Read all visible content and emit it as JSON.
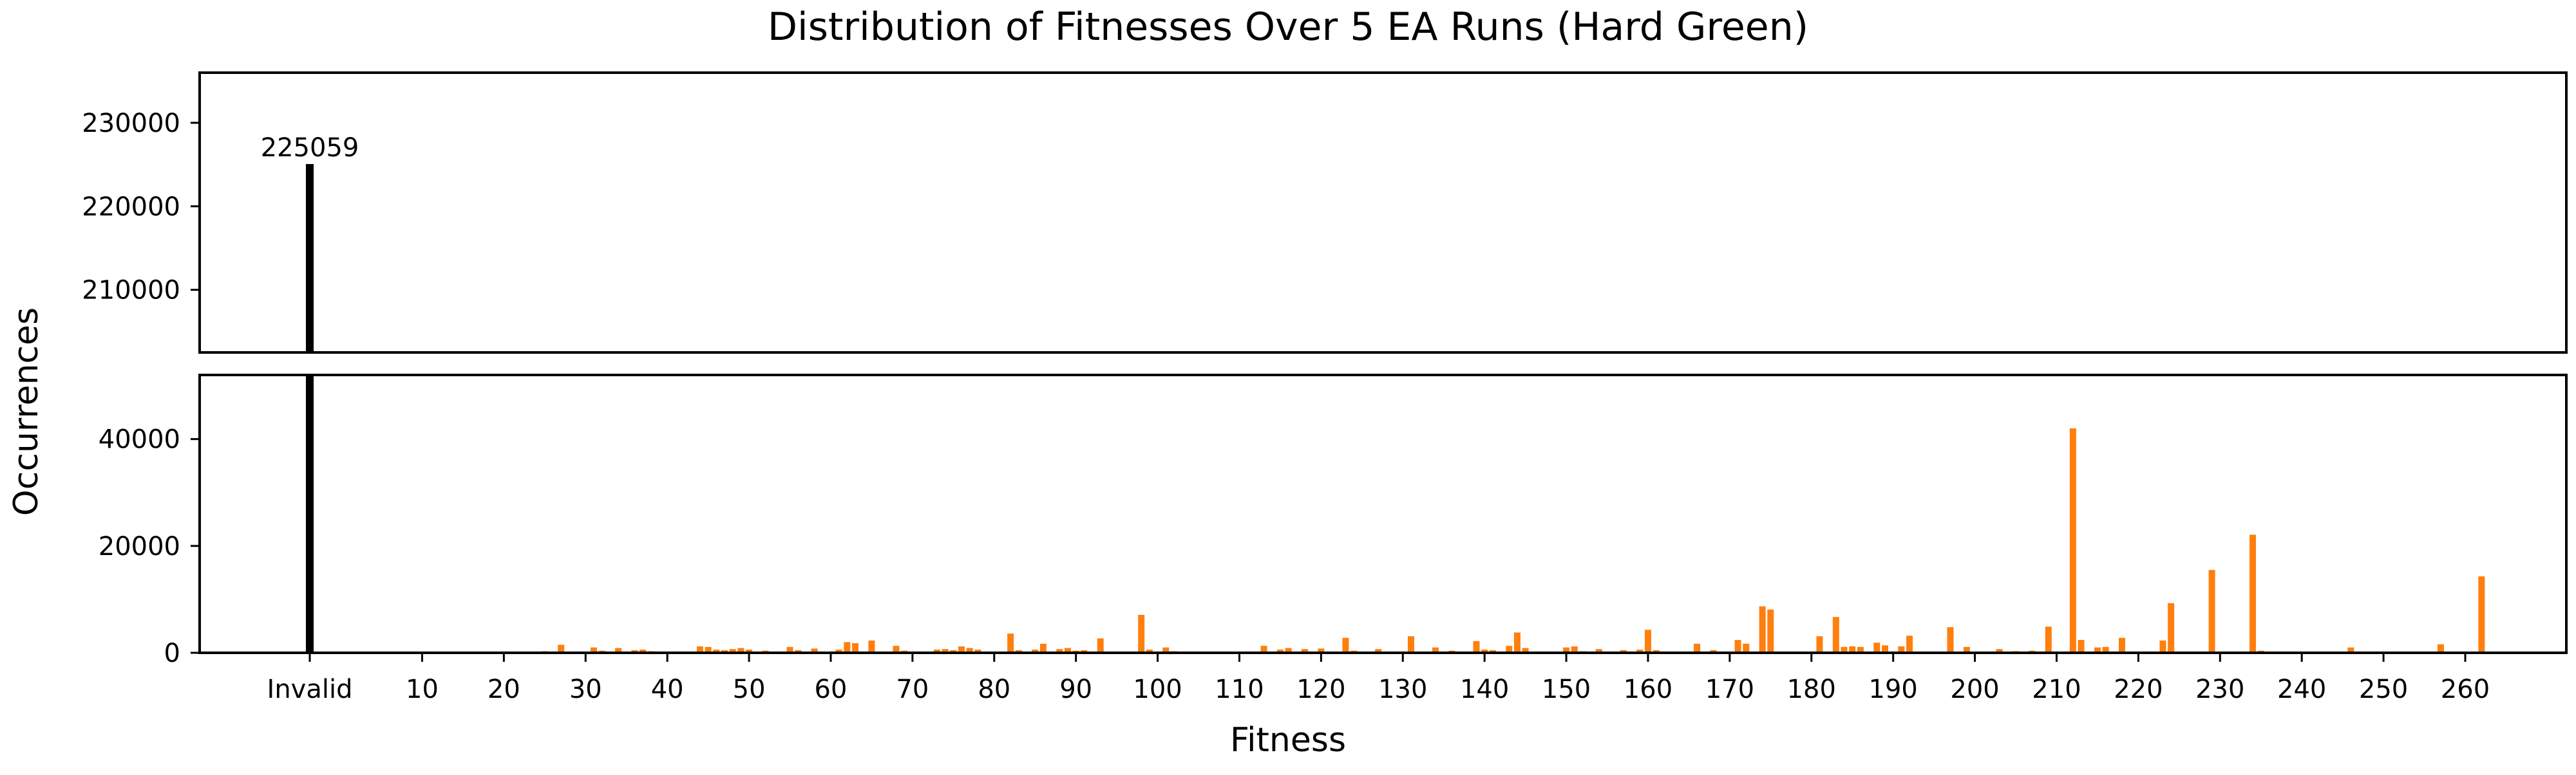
{
  "chart_data": {
    "type": "bar",
    "title": "Distribution of Fitnesses Over 5 EA Runs (Hard Green)",
    "xlabel": "Fitness",
    "ylabel": "Occurrences",
    "x_ticks": [
      "Invalid",
      "10",
      "20",
      "30",
      "40",
      "50",
      "60",
      "70",
      "80",
      "90",
      "100",
      "110",
      "120",
      "130",
      "140",
      "150",
      "160",
      "170",
      "180",
      "190",
      "200",
      "210",
      "220",
      "230",
      "240",
      "250",
      "260"
    ],
    "broken_axis": {
      "top": {
        "ylim": [
          202500,
          236000
        ],
        "yticks": [
          210000,
          220000,
          230000
        ]
      },
      "bottom": {
        "ylim": [
          0,
          52000
        ],
        "yticks": [
          0,
          20000,
          40000
        ]
      }
    },
    "invalid_bar": {
      "label": "Invalid",
      "value": 225059,
      "color": "#000000",
      "data_label": "225059"
    },
    "series": [
      {
        "color": "#ff7f0e",
        "points": [
          [
            25,
            300
          ],
          [
            27,
            1500
          ],
          [
            29,
            200
          ],
          [
            31,
            1000
          ],
          [
            32,
            400
          ],
          [
            34,
            900
          ],
          [
            36,
            500
          ],
          [
            37,
            600
          ],
          [
            38,
            300
          ],
          [
            44,
            1200
          ],
          [
            45,
            1100
          ],
          [
            46,
            600
          ],
          [
            47,
            500
          ],
          [
            48,
            700
          ],
          [
            49,
            900
          ],
          [
            50,
            600
          ],
          [
            52,
            400
          ],
          [
            55,
            1100
          ],
          [
            56,
            500
          ],
          [
            58,
            800
          ],
          [
            61,
            600
          ],
          [
            62,
            2000
          ],
          [
            63,
            1800
          ],
          [
            65,
            2300
          ],
          [
            68,
            1300
          ],
          [
            69,
            400
          ],
          [
            71,
            200
          ],
          [
            73,
            600
          ],
          [
            74,
            700
          ],
          [
            75,
            500
          ],
          [
            76,
            1200
          ],
          [
            77,
            900
          ],
          [
            78,
            600
          ],
          [
            82,
            3600
          ],
          [
            83,
            500
          ],
          [
            85,
            600
          ],
          [
            86,
            1700
          ],
          [
            88,
            700
          ],
          [
            89,
            900
          ],
          [
            90,
            400
          ],
          [
            91,
            500
          ],
          [
            93,
            2700
          ],
          [
            98,
            7100
          ],
          [
            99,
            600
          ],
          [
            101,
            1000
          ],
          [
            102,
            300
          ],
          [
            113,
            1300
          ],
          [
            115,
            600
          ],
          [
            116,
            900
          ],
          [
            118,
            700
          ],
          [
            120,
            800
          ],
          [
            123,
            2800
          ],
          [
            124,
            400
          ],
          [
            127,
            700
          ],
          [
            131,
            3100
          ],
          [
            134,
            1000
          ],
          [
            136,
            400
          ],
          [
            139,
            2200
          ],
          [
            140,
            600
          ],
          [
            141,
            500
          ],
          [
            143,
            1300
          ],
          [
            144,
            3800
          ],
          [
            145,
            900
          ],
          [
            150,
            1000
          ],
          [
            151,
            1200
          ],
          [
            152,
            300
          ],
          [
            154,
            700
          ],
          [
            157,
            500
          ],
          [
            159,
            600
          ],
          [
            160,
            4300
          ],
          [
            161,
            500
          ],
          [
            166,
            1700
          ],
          [
            168,
            500
          ],
          [
            171,
            2400
          ],
          [
            172,
            1700
          ],
          [
            174,
            8700
          ],
          [
            175,
            8100
          ],
          [
            181,
            3100
          ],
          [
            183,
            6700
          ],
          [
            184,
            1100
          ],
          [
            185,
            1200
          ],
          [
            186,
            1100
          ],
          [
            188,
            1900
          ],
          [
            189,
            1400
          ],
          [
            191,
            1200
          ],
          [
            192,
            3200
          ],
          [
            197,
            4800
          ],
          [
            199,
            1100
          ],
          [
            203,
            700
          ],
          [
            205,
            300
          ],
          [
            207,
            400
          ],
          [
            209,
            4900
          ],
          [
            212,
            42000
          ],
          [
            213,
            2400
          ],
          [
            215,
            1000
          ],
          [
            216,
            1100
          ],
          [
            218,
            2800
          ],
          [
            223,
            2300
          ],
          [
            224,
            9300
          ],
          [
            229,
            15500
          ],
          [
            234,
            22100
          ],
          [
            235,
            400
          ],
          [
            246,
            1000
          ],
          [
            257,
            1600
          ],
          [
            262,
            14300
          ]
        ]
      }
    ],
    "grid": false
  }
}
